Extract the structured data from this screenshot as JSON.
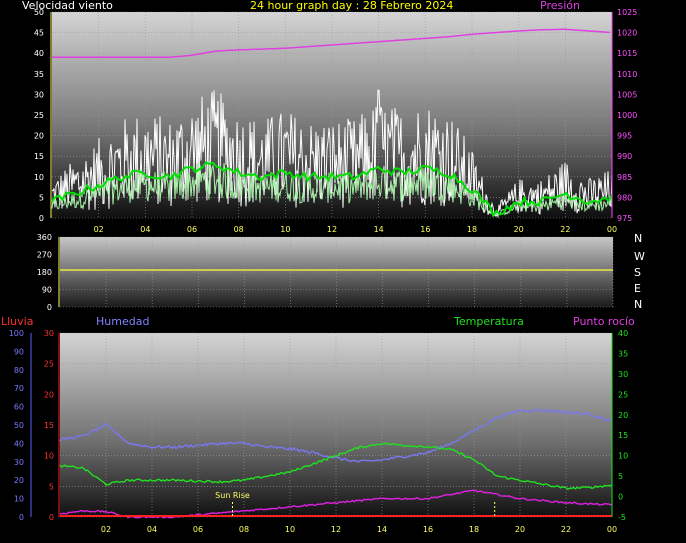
{
  "header": {
    "title": "24 hour graph day : 28 Febrero 2024",
    "wind_label": "Velocidad viento",
    "pressure_label": "Presión"
  },
  "direction_letters": [
    "N",
    "W",
    "S",
    "E",
    "N"
  ],
  "lower": {
    "rain_label": "Lluvia",
    "humidity_label": "Humedad",
    "temperature_label": "Temperatura",
    "dew_label": "Punto rocío",
    "sunrise_label": "Sun Rise"
  },
  "colors": {
    "wind_gust": "#ffffff",
    "wind_speed": "#a8f0a8",
    "wind_avg": "#00e000",
    "pressure": "#e040e0",
    "direction": "#e8e840",
    "humidity": "#7878f0",
    "temperature": "#20e020",
    "dew_point": "#e020e0",
    "rain": "#ff2020",
    "title": "#ffff00"
  },
  "chart_data": [
    {
      "type": "line",
      "title": "24 hour graph day : 28 Febrero 2024",
      "x_ticks": [
        "02",
        "04",
        "06",
        "08",
        "10",
        "12",
        "14",
        "16",
        "18",
        "20",
        "22",
        "00"
      ],
      "y_left_ticks": [
        0,
        5,
        10,
        15,
        20,
        25,
        30,
        35,
        40,
        45,
        50
      ],
      "y_right_ticks": [
        975,
        980,
        985,
        990,
        995,
        1000,
        1005,
        1010,
        1015,
        1020,
        1025
      ],
      "ylim_left": [
        0,
        50
      ],
      "ylim_right": [
        975,
        1025
      ],
      "x": [
        0,
        1,
        2,
        3,
        4,
        5,
        6,
        7,
        8,
        9,
        10,
        11,
        12,
        13,
        14,
        15,
        16,
        17,
        18,
        19,
        20,
        21,
        22,
        23,
        24
      ],
      "series": [
        {
          "name": "Velocidad viento",
          "axis": "left",
          "values": [
            4,
            6,
            8,
            10,
            11,
            10,
            12,
            13,
            11,
            10,
            11,
            10,
            10,
            10,
            12,
            11,
            12,
            11,
            7,
            1,
            4,
            4,
            6,
            4,
            5
          ]
        },
        {
          "name": "Presión",
          "axis": "right",
          "values": [
            1014,
            1014,
            1014,
            1014,
            1014,
            1014,
            1014.5,
            1015.5,
            1015.8,
            1016,
            1016.2,
            1016.6,
            1017,
            1017.4,
            1017.8,
            1018.2,
            1018.6,
            1019,
            1019.6,
            1020,
            1020.4,
            1020.7,
            1020.8,
            1020.4,
            1020
          ]
        }
      ],
      "gust_peak": {
        "x": 14,
        "y": 31
      },
      "grid": true
    },
    {
      "type": "line",
      "y_ticks": [
        0,
        90,
        180,
        270,
        360
      ],
      "ylim": [
        0,
        360
      ],
      "x": [
        0,
        24
      ],
      "series": [
        {
          "values": [
            190,
            190
          ]
        }
      ],
      "grid": true
    },
    {
      "type": "line",
      "x_ticks": [
        "02",
        "04",
        "06",
        "08",
        "10",
        "12",
        "14",
        "16",
        "18",
        "20",
        "22",
        "00"
      ],
      "y_left_outer_ticks": [
        0,
        10,
        20,
        30,
        40,
        50,
        60,
        70,
        80,
        90,
        100
      ],
      "y_left_inner_ticks": [
        0,
        5,
        10,
        15,
        20,
        25,
        30
      ],
      "y_right_ticks": [
        -5,
        0,
        5,
        10,
        15,
        20,
        25,
        30,
        35,
        40
      ],
      "ylim_humidity": [
        0,
        100
      ],
      "ylim_rain": [
        0,
        30
      ],
      "ylim_temperature": [
        -5,
        40
      ],
      "x": [
        0,
        1,
        2,
        3,
        4,
        5,
        6,
        7,
        8,
        9,
        10,
        11,
        12,
        13,
        14,
        15,
        16,
        17,
        18,
        19,
        20,
        21,
        22,
        23,
        24
      ],
      "series": [
        {
          "name": "Humedad",
          "axis": "humidity",
          "values": [
            42,
            44,
            50,
            40,
            38,
            38,
            39,
            40,
            40,
            38,
            37,
            35,
            32,
            30,
            31,
            33,
            35,
            40,
            47,
            54,
            58,
            58,
            57,
            56,
            52
          ]
        },
        {
          "name": "Temperatura",
          "axis": "temperature",
          "values": [
            7.5,
            7,
            3,
            4,
            4,
            4,
            3.8,
            3.6,
            4,
            5,
            6,
            8,
            10,
            12,
            13,
            12.5,
            12.2,
            11.5,
            9,
            5,
            4,
            3,
            2,
            2.2,
            2.8
          ]
        },
        {
          "name": "Punto rocío",
          "axis": "temperature",
          "values": [
            -4.2,
            -3.5,
            -3.7,
            -5,
            -5,
            -5,
            -4.5,
            -4,
            -3.5,
            -3,
            -2.5,
            -2,
            -1.5,
            -1,
            -0.5,
            -0.5,
            -0.5,
            0.5,
            1.5,
            0.5,
            -0.5,
            -1,
            -1.5,
            -1.8,
            -2
          ]
        },
        {
          "name": "Lluvia",
          "axis": "rain",
          "values": [
            0,
            0,
            0,
            0,
            0,
            0,
            0,
            0,
            0,
            0,
            0,
            0,
            0,
            0,
            0,
            0,
            0,
            0,
            0,
            0,
            0,
            0,
            0,
            0,
            0
          ]
        }
      ],
      "sunrise_hour": 7.5,
      "sunset_hour": 18.9,
      "grid": true
    }
  ]
}
